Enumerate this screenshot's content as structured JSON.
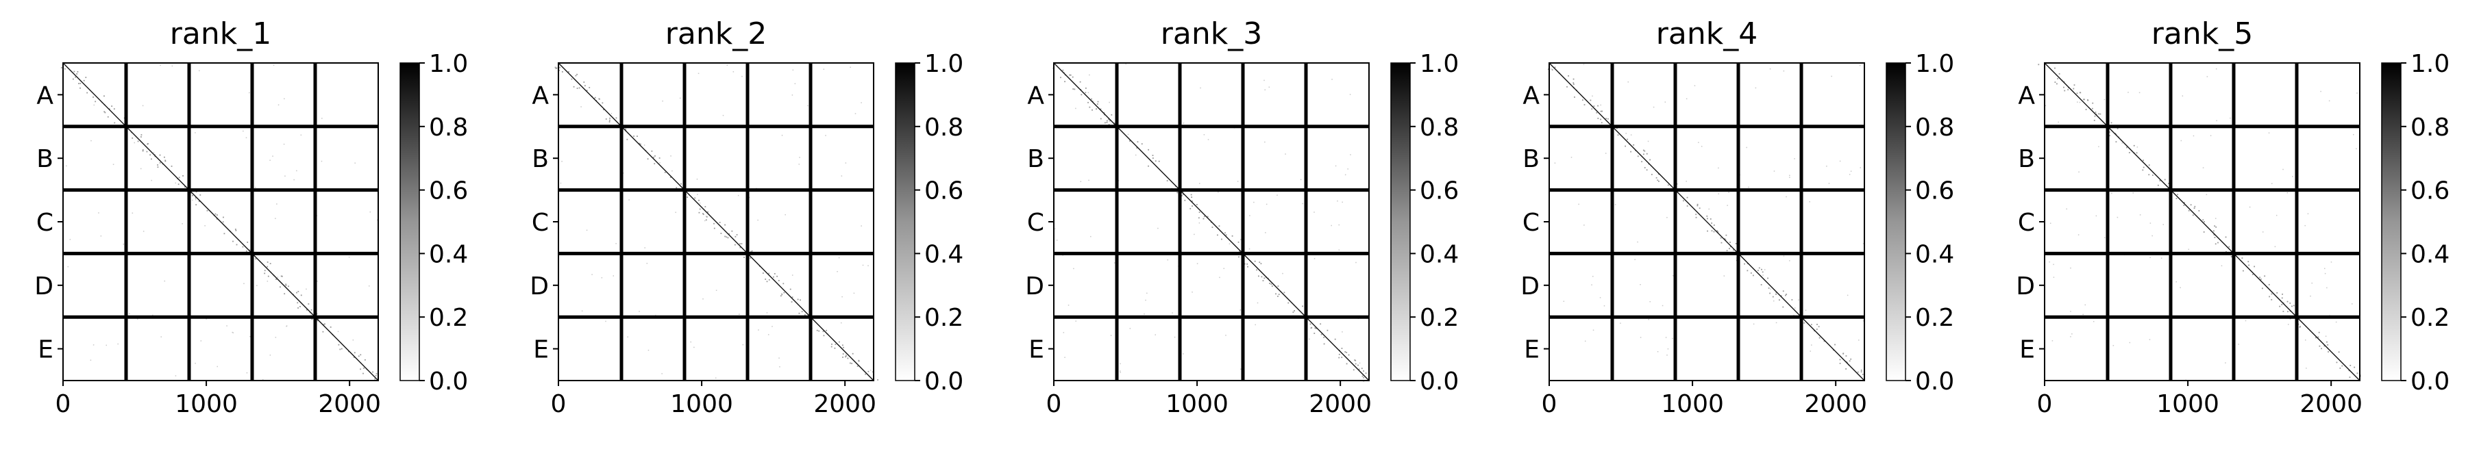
{
  "chart_data": [
    {
      "type": "heatmap",
      "title": "rank_1",
      "row_labels": [
        "A",
        "B",
        "C",
        "D",
        "E"
      ],
      "xticks": [
        0,
        1000,
        2000
      ],
      "xlim": [
        0,
        2200
      ],
      "block_boundaries": [
        440,
        880,
        1320,
        1760
      ],
      "diagonal": "strong values (near 1.0) along the main diagonal, sparse faint speckles elsewhere",
      "colorbar": {
        "min": 0.0,
        "max": 1.0,
        "ticks": [
          "0.0",
          "0.2",
          "0.4",
          "0.6",
          "0.8",
          "1.0"
        ],
        "colormap": "greys"
      }
    },
    {
      "type": "heatmap",
      "title": "rank_2",
      "row_labels": [
        "A",
        "B",
        "C",
        "D",
        "E"
      ],
      "xticks": [
        0,
        1000,
        2000
      ],
      "xlim": [
        0,
        2200
      ],
      "block_boundaries": [
        440,
        880,
        1320,
        1760
      ],
      "diagonal": "strong values (near 1.0) along the main diagonal, sparse faint speckles elsewhere",
      "colorbar": {
        "min": 0.0,
        "max": 1.0,
        "ticks": [
          "0.0",
          "0.2",
          "0.4",
          "0.6",
          "0.8",
          "1.0"
        ],
        "colormap": "greys"
      }
    },
    {
      "type": "heatmap",
      "title": "rank_3",
      "row_labels": [
        "A",
        "B",
        "C",
        "D",
        "E"
      ],
      "xticks": [
        0,
        1000,
        2000
      ],
      "xlim": [
        0,
        2200
      ],
      "block_boundaries": [
        440,
        880,
        1320,
        1760
      ],
      "diagonal": "strong values (near 1.0) along the main diagonal, sparse faint speckles elsewhere",
      "colorbar": {
        "min": 0.0,
        "max": 1.0,
        "ticks": [
          "0.0",
          "0.2",
          "0.4",
          "0.6",
          "0.8",
          "1.0"
        ],
        "colormap": "greys"
      }
    },
    {
      "type": "heatmap",
      "title": "rank_4",
      "row_labels": [
        "A",
        "B",
        "C",
        "D",
        "E"
      ],
      "xticks": [
        0,
        1000,
        2000
      ],
      "xlim": [
        0,
        2200
      ],
      "block_boundaries": [
        440,
        880,
        1320,
        1760
      ],
      "diagonal": "strong values (near 1.0) along the main diagonal, sparse faint speckles elsewhere",
      "colorbar": {
        "min": 0.0,
        "max": 1.0,
        "ticks": [
          "0.0",
          "0.2",
          "0.4",
          "0.6",
          "0.8",
          "1.0"
        ],
        "colormap": "greys"
      }
    },
    {
      "type": "heatmap",
      "title": "rank_5",
      "row_labels": [
        "A",
        "B",
        "C",
        "D",
        "E"
      ],
      "xticks": [
        0,
        1000,
        2000
      ],
      "xlim": [
        0,
        2200
      ],
      "block_boundaries": [
        440,
        880,
        1320,
        1760
      ],
      "diagonal": "strong values (near 1.0) along the main diagonal, sparse faint speckles elsewhere",
      "colorbar": {
        "min": 0.0,
        "max": 1.0,
        "ticks": [
          "0.0",
          "0.2",
          "0.4",
          "0.6",
          "0.8",
          "1.0"
        ],
        "colormap": "greys"
      }
    }
  ]
}
